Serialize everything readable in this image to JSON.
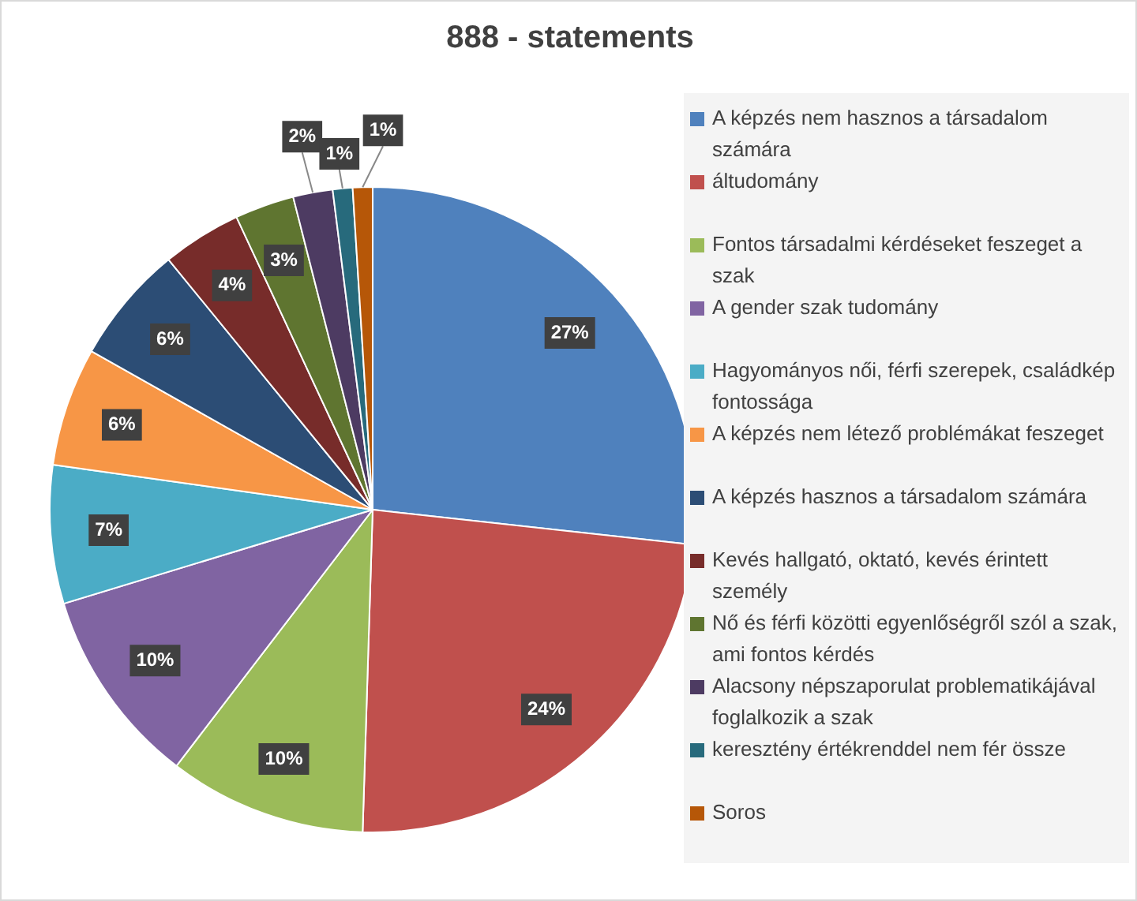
{
  "chart_data": {
    "type": "pie",
    "title": "888 - statements",
    "categories": [
      "A képzés nem hasznos a társadalom számára",
      "áltudomány",
      "Fontos társadalmi kérdéseket feszeget a szak",
      "A gender szak tudomány",
      "Hagyományos női, férfi szerepek, családkép fontossága",
      "A képzés nem létező problémákat feszeget",
      "A képzés hasznos a társadalom számára",
      "Kevés hallgató, oktató, kevés érintett személy",
      "Nő és férfi közötti egyenlőségről szól a szak, ami fontos kérdés",
      "Alacsony népszaporulat problematikájával foglalkozik a szak",
      "keresztény értékrenddel nem fér össze",
      "Soros"
    ],
    "values": [
      27,
      24,
      10,
      10,
      7,
      6,
      6,
      4,
      3,
      2,
      1,
      1
    ],
    "value_labels": [
      "27%",
      "24%",
      "10%",
      "10%",
      "7%",
      "6%",
      "6%",
      "4%",
      "3%",
      "2%",
      "1%",
      "1%"
    ],
    "colors": [
      "#4f81bd",
      "#c0504d",
      "#9bbb59",
      "#8064a2",
      "#4bacc6",
      "#f79646",
      "#2c4d75",
      "#772c2a",
      "#5f7530",
      "#4d3b62",
      "#276a7c",
      "#b65708"
    ],
    "legend": "right"
  }
}
